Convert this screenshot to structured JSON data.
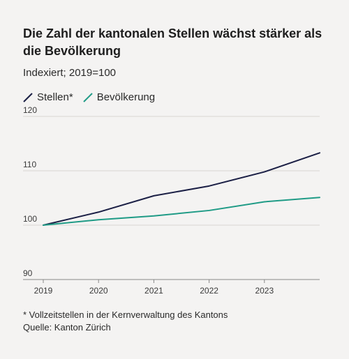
{
  "title": "Die Zahl der kantonalen Stellen wächst stärker als die Bevölkerung",
  "subtitle": "Indexiert; 2019=100",
  "footnote": "* Vollzeitstellen in der Kernverwaltung des Kantons",
  "source": "Quelle: Kanton Zürich",
  "colors": {
    "stellen": "#1b1f45",
    "bevoelkerung": "#1f9b86",
    "grid": "#d7d6d3",
    "axis": "#888888"
  },
  "chart_data": {
    "type": "line",
    "x": [
      2019,
      2020,
      2021,
      2022,
      2023,
      2024
    ],
    "x_ticks": [
      "2019",
      "2020",
      "2021",
      "2022",
      "2023"
    ],
    "y_ticks": [
      "90",
      "100",
      "110",
      "120"
    ],
    "ylim": [
      90,
      120
    ],
    "xlim": [
      2019,
      2024
    ],
    "grid": true,
    "legend_position": "top-left",
    "series": [
      {
        "name": "Stellen*",
        "color": "#1b1f45",
        "values": [
          100,
          102.4,
          105.4,
          107.2,
          109.8,
          113.3
        ]
      },
      {
        "name": "Bevölkerung",
        "color": "#1f9b86",
        "values": [
          100,
          101.0,
          101.7,
          102.7,
          104.3,
          105.1
        ]
      }
    ]
  }
}
